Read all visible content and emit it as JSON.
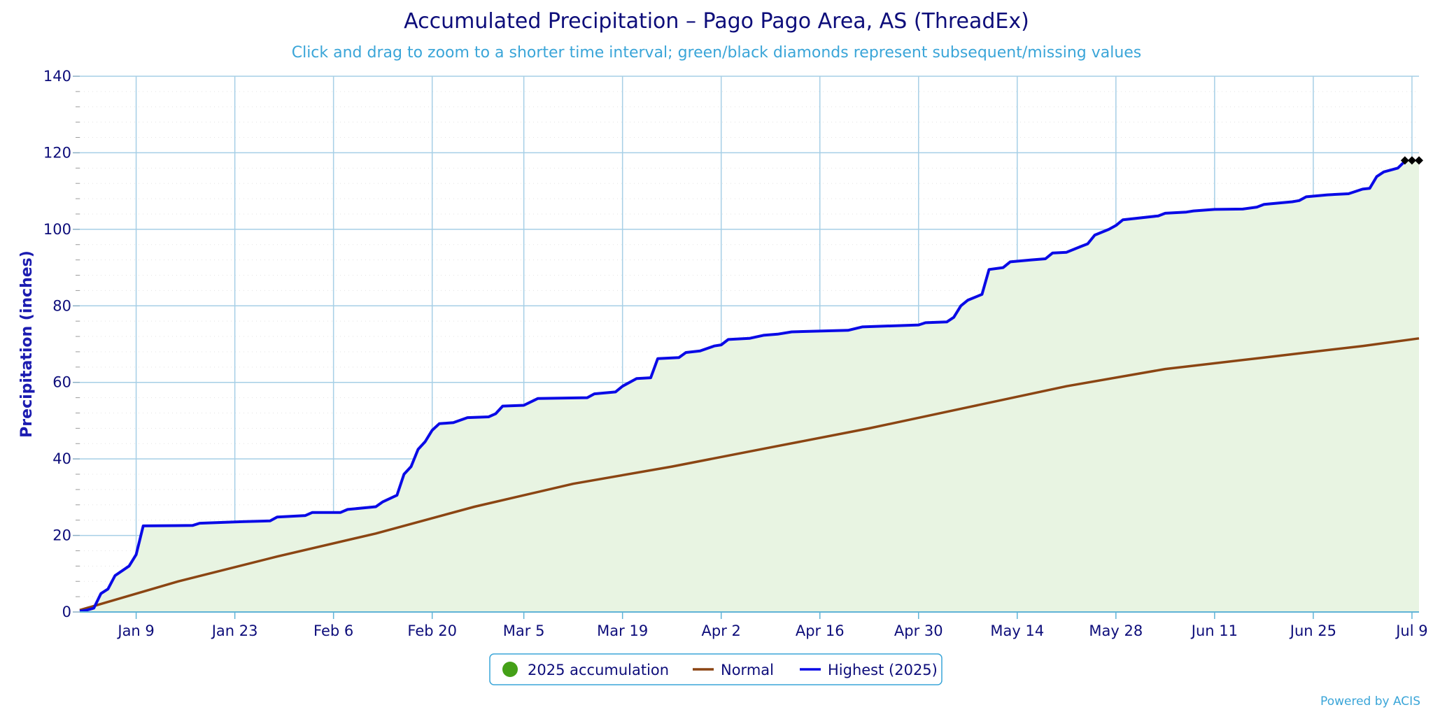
{
  "chart": {
    "title": "Accumulated Precipitation – Pago Pago Area, AS (ThreadEx)",
    "subtitle": "Click and drag to zoom to a shorter time interval; green/black diamonds represent subsequent/missing values",
    "ylabel": "Precipitation (inches)",
    "credits": "Powered by ACIS"
  },
  "chart_data": {
    "type": "line",
    "title": "Accumulated Precipitation – Pago Pago Area, AS (ThreadEx)",
    "subtitle": "Click and drag to zoom to a shorter time interval; green/black diamonds represent subsequent/missing values",
    "xlabel": "",
    "ylabel": "Precipitation (inches)",
    "x_axis": {
      "type": "date",
      "range": [
        "2025-01-01",
        "2025-07-10"
      ],
      "tick_labels": [
        "Jan 9",
        "Jan 23",
        "Feb 6",
        "Feb 20",
        "Mar 5",
        "Mar 19",
        "Apr 2",
        "Apr 16",
        "Apr 30",
        "May 14",
        "May 28",
        "Jun 11",
        "Jun 25",
        "Jul 9"
      ],
      "tick_dates": [
        "2025-01-09",
        "2025-01-23",
        "2025-02-06",
        "2025-02-20",
        "2025-03-05",
        "2025-03-19",
        "2025-04-02",
        "2025-04-16",
        "2025-04-30",
        "2025-05-14",
        "2025-05-28",
        "2025-06-11",
        "2025-06-25",
        "2025-07-09"
      ]
    },
    "ylim": [
      0,
      140
    ],
    "y_ticks": [
      0,
      20,
      40,
      60,
      80,
      100,
      120,
      140
    ],
    "grid": true,
    "legend_position": "bottom-center",
    "legend": [
      {
        "label": "2025 accumulation",
        "symbol": "circle",
        "color": "#44a017"
      },
      {
        "label": "Normal",
        "symbol": "line",
        "color": "#8b4513"
      },
      {
        "label": "Highest (2025)",
        "symbol": "line",
        "color": "#0a0ae6"
      }
    ],
    "series": [
      {
        "name": "2025 accumulation",
        "kind": "area",
        "color": "#e8f4e2",
        "same_as": "Highest (2025)"
      },
      {
        "name": "Highest (2025)",
        "kind": "line",
        "color": "#0a0ae6",
        "points": [
          [
            "2025-01-01",
            0.2
          ],
          [
            "2025-01-02",
            0.5
          ],
          [
            "2025-01-03",
            1.0
          ],
          [
            "2025-01-04",
            4.8
          ],
          [
            "2025-01-05",
            6.0
          ],
          [
            "2025-01-06",
            9.5
          ],
          [
            "2025-01-08",
            12.0
          ],
          [
            "2025-01-09",
            15.0
          ],
          [
            "2025-01-10",
            22.5
          ],
          [
            "2025-01-17",
            22.6
          ],
          [
            "2025-01-18",
            23.2
          ],
          [
            "2025-01-24",
            23.6
          ],
          [
            "2025-01-28",
            23.8
          ],
          [
            "2025-01-29",
            24.8
          ],
          [
            "2025-02-02",
            25.2
          ],
          [
            "2025-02-03",
            26.0
          ],
          [
            "2025-02-07",
            26.0
          ],
          [
            "2025-02-08",
            26.8
          ],
          [
            "2025-02-12",
            27.5
          ],
          [
            "2025-02-13",
            28.8
          ],
          [
            "2025-02-15",
            30.5
          ],
          [
            "2025-02-16",
            36.0
          ],
          [
            "2025-02-17",
            38.0
          ],
          [
            "2025-02-18",
            42.5
          ],
          [
            "2025-02-19",
            44.5
          ],
          [
            "2025-02-20",
            47.5
          ],
          [
            "2025-02-21",
            49.2
          ],
          [
            "2025-02-23",
            49.5
          ],
          [
            "2025-02-25",
            50.8
          ],
          [
            "2025-02-28",
            51.0
          ],
          [
            "2025-03-01",
            51.8
          ],
          [
            "2025-03-02",
            53.8
          ],
          [
            "2025-03-05",
            54.0
          ],
          [
            "2025-03-07",
            55.8
          ],
          [
            "2025-03-14",
            56.0
          ],
          [
            "2025-03-15",
            57.0
          ],
          [
            "2025-03-18",
            57.5
          ],
          [
            "2025-03-19",
            59.0
          ],
          [
            "2025-03-21",
            61.0
          ],
          [
            "2025-03-23",
            61.2
          ],
          [
            "2025-03-24",
            66.2
          ],
          [
            "2025-03-27",
            66.5
          ],
          [
            "2025-03-28",
            67.8
          ],
          [
            "2025-03-30",
            68.2
          ],
          [
            "2025-04-01",
            69.5
          ],
          [
            "2025-04-02",
            69.8
          ],
          [
            "2025-04-03",
            71.2
          ],
          [
            "2025-04-06",
            71.5
          ],
          [
            "2025-04-08",
            72.3
          ],
          [
            "2025-04-10",
            72.6
          ],
          [
            "2025-04-12",
            73.2
          ],
          [
            "2025-04-20",
            73.6
          ],
          [
            "2025-04-22",
            74.5
          ],
          [
            "2025-04-30",
            75.0
          ],
          [
            "2025-05-01",
            75.6
          ],
          [
            "2025-05-04",
            75.8
          ],
          [
            "2025-05-05",
            77.0
          ],
          [
            "2025-05-06",
            80.0
          ],
          [
            "2025-05-07",
            81.5
          ],
          [
            "2025-05-09",
            83.0
          ],
          [
            "2025-05-10",
            89.5
          ],
          [
            "2025-05-12",
            90.0
          ],
          [
            "2025-05-13",
            91.5
          ],
          [
            "2025-05-16",
            92.0
          ],
          [
            "2025-05-18",
            92.3
          ],
          [
            "2025-05-19",
            93.8
          ],
          [
            "2025-05-21",
            94.0
          ],
          [
            "2025-05-23",
            95.5
          ],
          [
            "2025-05-24",
            96.2
          ],
          [
            "2025-05-25",
            98.5
          ],
          [
            "2025-05-27",
            100.0
          ],
          [
            "2025-05-28",
            101.0
          ],
          [
            "2025-05-29",
            102.5
          ],
          [
            "2025-06-03",
            103.5
          ],
          [
            "2025-06-04",
            104.2
          ],
          [
            "2025-06-07",
            104.5
          ],
          [
            "2025-06-08",
            104.8
          ],
          [
            "2025-06-11",
            105.2
          ],
          [
            "2025-06-15",
            105.3
          ],
          [
            "2025-06-17",
            105.8
          ],
          [
            "2025-06-18",
            106.5
          ],
          [
            "2025-06-22",
            107.2
          ],
          [
            "2025-06-23",
            107.5
          ],
          [
            "2025-06-24",
            108.5
          ],
          [
            "2025-06-27",
            109.0
          ],
          [
            "2025-06-30",
            109.3
          ],
          [
            "2025-07-02",
            110.5
          ],
          [
            "2025-07-03",
            110.7
          ],
          [
            "2025-07-04",
            113.8
          ],
          [
            "2025-07-05",
            115.0
          ],
          [
            "2025-07-07",
            116.0
          ],
          [
            "2025-07-08",
            117.8
          ]
        ]
      },
      {
        "name": "Normal",
        "kind": "line",
        "color": "#8b4513",
        "points": [
          [
            "2025-01-01",
            0.5
          ],
          [
            "2025-01-15",
            8.0
          ],
          [
            "2025-01-29",
            14.5
          ],
          [
            "2025-02-12",
            20.5
          ],
          [
            "2025-02-26",
            27.5
          ],
          [
            "2025-03-12",
            33.5
          ],
          [
            "2025-03-26",
            38.0
          ],
          [
            "2025-04-09",
            43.0
          ],
          [
            "2025-04-23",
            48.0
          ],
          [
            "2025-05-07",
            53.5
          ],
          [
            "2025-05-21",
            59.0
          ],
          [
            "2025-06-04",
            63.5
          ],
          [
            "2025-06-18",
            66.5
          ],
          [
            "2025-07-02",
            69.5
          ],
          [
            "2025-07-10",
            71.5
          ]
        ]
      },
      {
        "name": "missing values",
        "kind": "markers",
        "marker": "diamond",
        "color": "#000000",
        "points": [
          [
            "2025-07-08",
            118.0
          ],
          [
            "2025-07-09",
            118.0
          ],
          [
            "2025-07-10",
            118.0
          ]
        ]
      }
    ]
  }
}
